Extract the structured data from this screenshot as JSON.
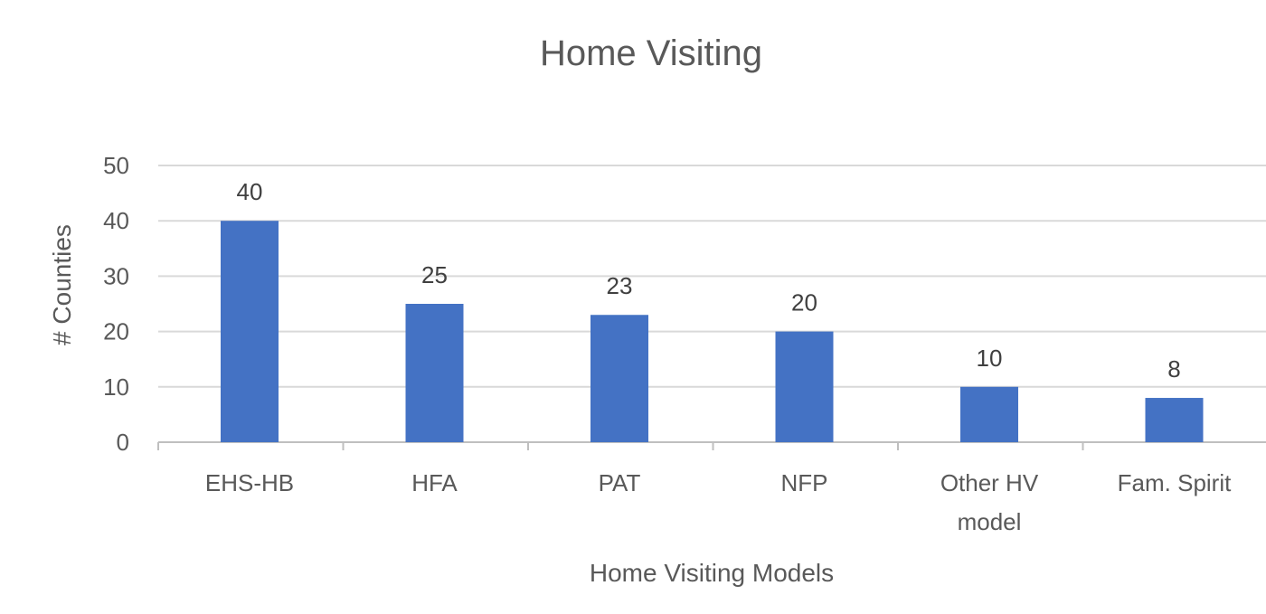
{
  "chart_data": {
    "type": "bar",
    "title": "Home Visiting",
    "xlabel": "Home Visiting Models",
    "ylabel": "# Counties",
    "categories": [
      "EHS-HB",
      "HFA",
      "PAT",
      "NFP",
      "Other HV model",
      "Fam. Spirit"
    ],
    "category_lines": [
      [
        "EHS-HB"
      ],
      [
        "HFA"
      ],
      [
        "PAT"
      ],
      [
        "NFP"
      ],
      [
        "Other HV",
        "model"
      ],
      [
        "Fam. Spirit"
      ]
    ],
    "values": [
      40,
      25,
      23,
      20,
      10,
      8
    ],
    "ylim": [
      0,
      50
    ],
    "yticks": [
      0,
      10,
      20,
      30,
      40,
      50
    ],
    "grid": true,
    "legend": "none",
    "bar_color": "#4472c4"
  }
}
